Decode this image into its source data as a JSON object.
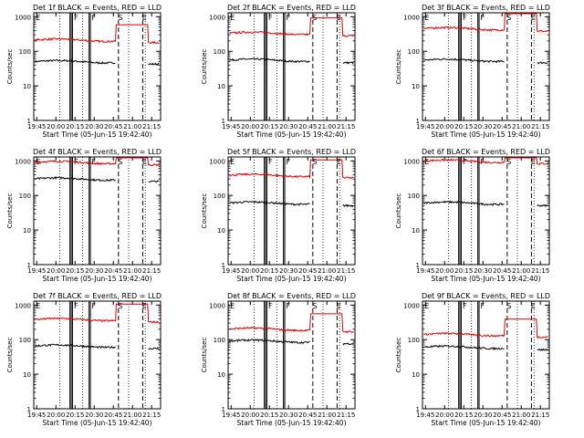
{
  "figure": {
    "xlabel": "Start Time (05-Jun-15 19:42:40)",
    "ylabel": "Counts/sec",
    "xtick_labels": [
      "19:45",
      "20:00",
      "20:15",
      "20:30",
      "20:45",
      "21:00",
      "21:15"
    ],
    "ytick_labels": [
      "1",
      "10",
      "100",
      "1000"
    ],
    "marker_labels": {
      "S": "S",
      "E": "E",
      "F": "F"
    },
    "colors": {
      "events": "#000000",
      "lld": "#dd0000",
      "axes": "#000000",
      "background": "#ffffff"
    }
  },
  "chart_data": [
    {
      "type": "line",
      "title": "Det 1f BLACK = Events, RED = LLD",
      "xlim": [
        "19:42:40",
        "21:22:00"
      ],
      "ylim": [
        1,
        1300
      ],
      "yscale": "log",
      "series": [
        {
          "name": "Events",
          "color": "#000000",
          "level": 50
        },
        {
          "name": "LLD",
          "color": "#dd0000",
          "level": 210
        }
      ],
      "markers": {
        "S": "20:49",
        "E": "21:08",
        "F_lines": [
          "20:11",
          "20:12",
          "20:13",
          "20:26",
          "20:27"
        ]
      }
    },
    {
      "type": "line",
      "title": "Det 2f BLACK = Events, RED = LLD",
      "xlim": [
        "19:42:40",
        "21:22:00"
      ],
      "ylim": [
        1,
        1300
      ],
      "yscale": "log",
      "series": [
        {
          "name": "Events",
          "color": "#000000",
          "level": 55
        },
        {
          "name": "LLD",
          "color": "#dd0000",
          "level": 330
        }
      ],
      "markers": {
        "S": "20:49",
        "E": "21:08",
        "F_lines": [
          "20:11",
          "20:12",
          "20:13",
          "20:26",
          "20:27"
        ]
      }
    },
    {
      "type": "line",
      "title": "Det 3f BLACK = Events, RED = LLD",
      "xlim": [
        "19:42:40",
        "21:22:00"
      ],
      "ylim": [
        1,
        1300
      ],
      "yscale": "log",
      "series": [
        {
          "name": "Events",
          "color": "#000000",
          "level": 55
        },
        {
          "name": "LLD",
          "color": "#dd0000",
          "level": 450
        }
      ],
      "markers": {
        "S": "20:49",
        "E": "21:08",
        "F_lines": [
          "20:11",
          "20:12",
          "20:13",
          "20:26",
          "20:27"
        ]
      }
    },
    {
      "type": "line",
      "title": "Det 4f BLACK = Events, RED = LLD",
      "xlim": [
        "19:42:40",
        "21:22:00"
      ],
      "ylim": [
        1,
        1300
      ],
      "yscale": "log",
      "series": [
        {
          "name": "Events",
          "color": "#000000",
          "level": 300
        },
        {
          "name": "LLD",
          "color": "#dd0000",
          "level": 900
        }
      ],
      "markers": {
        "S": "20:49",
        "E": "21:08",
        "F_lines": [
          "20:11",
          "20:12",
          "20:13",
          "20:26",
          "20:27"
        ]
      }
    },
    {
      "type": "line",
      "title": "Det 5f BLACK = Events, RED = LLD",
      "xlim": [
        "19:42:40",
        "21:22:00"
      ],
      "ylim": [
        1,
        1300
      ],
      "yscale": "log",
      "series": [
        {
          "name": "Events",
          "color": "#000000",
          "level": 60
        },
        {
          "name": "LLD",
          "color": "#dd0000",
          "level": 380
        }
      ],
      "markers": {
        "S": "20:49",
        "E": "21:08",
        "F_lines": [
          "20:11",
          "20:12",
          "20:13",
          "20:26",
          "20:27"
        ]
      }
    },
    {
      "type": "line",
      "title": "Det 6f BLACK = Events, RED = LLD",
      "xlim": [
        "19:42:40",
        "21:22:00"
      ],
      "ylim": [
        1,
        1300
      ],
      "yscale": "log",
      "series": [
        {
          "name": "Events",
          "color": "#000000",
          "level": 60
        },
        {
          "name": "LLD",
          "color": "#dd0000",
          "level": 980
        }
      ],
      "markers": {
        "S": "20:49",
        "E": "21:08",
        "F_lines": [
          "20:11",
          "20:12",
          "20:13",
          "20:26",
          "20:27"
        ]
      }
    },
    {
      "type": "line",
      "title": "Det 7f BLACK = Events, RED = LLD",
      "xlim": [
        "19:42:40",
        "21:22:00"
      ],
      "ylim": [
        1,
        1300
      ],
      "yscale": "log",
      "series": [
        {
          "name": "Events",
          "color": "#000000",
          "level": 65
        },
        {
          "name": "LLD",
          "color": "#dd0000",
          "level": 380
        }
      ],
      "markers": {
        "S": "20:49",
        "E": "21:08",
        "F_lines": [
          "20:11",
          "20:12",
          "20:13",
          "20:26",
          "20:27"
        ]
      }
    },
    {
      "type": "line",
      "title": "Det 8f BLACK = Events, RED = LLD",
      "xlim": [
        "19:42:40",
        "21:22:00"
      ],
      "ylim": [
        1,
        1300
      ],
      "yscale": "log",
      "series": [
        {
          "name": "Events",
          "color": "#000000",
          "level": 90
        },
        {
          "name": "LLD",
          "color": "#dd0000",
          "level": 200
        }
      ],
      "markers": {
        "S": "20:49",
        "E": "21:08",
        "F_lines": [
          "20:11",
          "20:12",
          "20:13",
          "20:26",
          "20:27"
        ]
      }
    },
    {
      "type": "line",
      "title": "Det 9f BLACK = Events, RED = LLD",
      "xlim": [
        "19:42:40",
        "21:22:00"
      ],
      "ylim": [
        1,
        1300
      ],
      "yscale": "log",
      "series": [
        {
          "name": "Events",
          "color": "#000000",
          "level": 60
        },
        {
          "name": "LLD",
          "color": "#dd0000",
          "level": 140
        }
      ],
      "markers": {
        "S": "20:49",
        "E": "21:08",
        "F_lines": [
          "20:11",
          "20:12",
          "20:13",
          "20:26",
          "20:27"
        ]
      }
    }
  ]
}
